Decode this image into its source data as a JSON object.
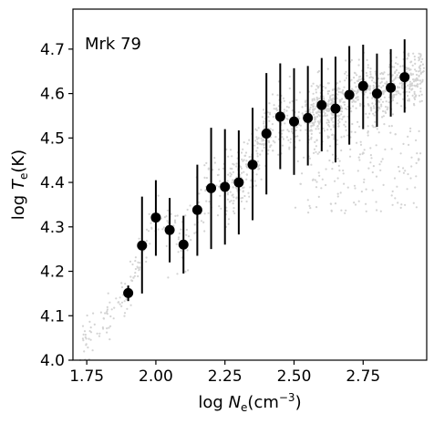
{
  "chart_data": {
    "type": "scatter",
    "title": "",
    "annotation": "Mrk 79",
    "xlabel": {
      "prefix": "log ",
      "var": "N",
      "sub": "e",
      "unit_open": "(cm",
      "sup": "−3",
      "unit_close": ")"
    },
    "ylabel": {
      "prefix": "log ",
      "var": "T",
      "sub": "e",
      "unit": "(K)"
    },
    "xlim": [
      1.7,
      2.98
    ],
    "ylim": [
      4.0,
      4.79
    ],
    "xticks": [
      1.75,
      2.0,
      2.25,
      2.5,
      2.75
    ],
    "xtick_labels": [
      "1.75",
      "2.00",
      "2.25",
      "2.50",
      "2.75"
    ],
    "yticks": [
      4.0,
      4.1,
      4.2,
      4.3,
      4.4,
      4.5,
      4.6,
      4.7
    ],
    "ytick_labels": [
      "4.0",
      "4.1",
      "4.2",
      "4.3",
      "4.4",
      "4.5",
      "4.6",
      "4.7"
    ],
    "grid": false,
    "colors": {
      "points": "#000000",
      "background_cloud": "#d3d3d3"
    },
    "series": [
      {
        "x": [
          1.9,
          1.95,
          2.0,
          2.05,
          2.1,
          2.15,
          2.2,
          2.25,
          2.3,
          2.35,
          2.4,
          2.45,
          2.5,
          2.55,
          2.6,
          2.65,
          2.7,
          2.75,
          2.8,
          2.85,
          2.9
        ],
        "y": [
          4.151,
          4.258,
          4.321,
          4.293,
          4.26,
          4.338,
          4.387,
          4.39,
          4.4,
          4.44,
          4.51,
          4.548,
          4.537,
          4.545,
          4.574,
          4.566,
          4.597,
          4.617,
          4.6,
          4.613,
          4.637
        ],
        "yerr_low": [
          4.133,
          4.15,
          4.235,
          4.22,
          4.195,
          4.235,
          4.25,
          4.26,
          4.283,
          4.315,
          4.373,
          4.43,
          4.417,
          4.438,
          4.47,
          4.445,
          4.485,
          4.52,
          4.525,
          4.548,
          4.557
        ],
        "yerr_high": [
          4.168,
          4.368,
          4.405,
          4.365,
          4.325,
          4.44,
          4.523,
          4.52,
          4.517,
          4.568,
          4.646,
          4.668,
          4.657,
          4.662,
          4.68,
          4.683,
          4.707,
          4.71,
          4.69,
          4.7,
          4.722
        ]
      }
    ]
  }
}
